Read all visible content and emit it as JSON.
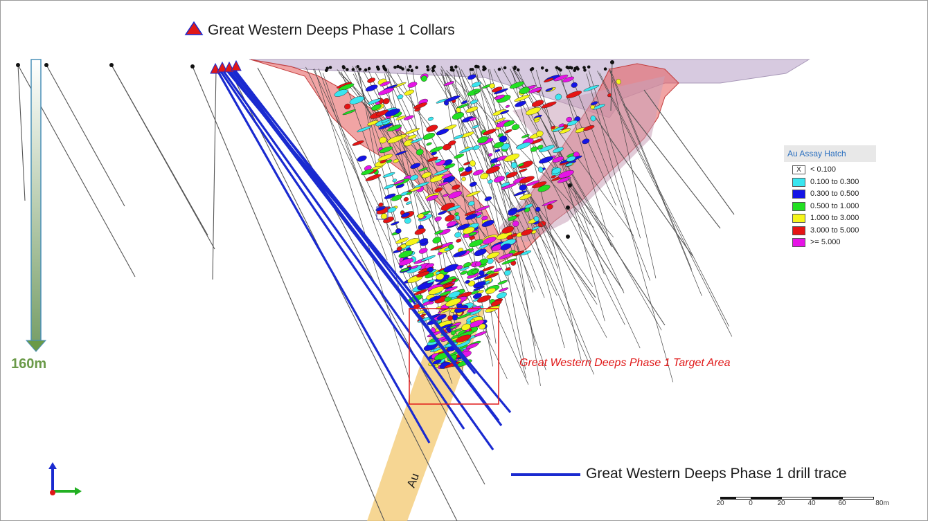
{
  "header": {
    "collars_label": "Great Western Deeps Phase 1 Collars",
    "collar_icon": "red-triangle-icon"
  },
  "scale_arrow": {
    "label": "160m",
    "color": "#6a9a48"
  },
  "target_area": {
    "label": "Great Western Deeps Phase 1 Target Area",
    "color": "#e01818"
  },
  "drill_trace_key": {
    "label": "Great Western Deeps Phase 1 drill trace",
    "color": "#1a2ad0"
  },
  "lode_label": "Au",
  "legend": {
    "title": "Au Assay Hatch",
    "items": [
      {
        "label": "< 0.100",
        "color": "#ffffff",
        "mark": "X"
      },
      {
        "label": "0.100 to 0.300",
        "color": "#39e6f0",
        "mark": ""
      },
      {
        "label": "0.300 to 0.500",
        "color": "#1414e6",
        "mark": ""
      },
      {
        "label": "0.500 to 1.000",
        "color": "#22e022",
        "mark": ""
      },
      {
        "label": "1.000 to 3.000",
        "color": "#f5f51a",
        "mark": ""
      },
      {
        "label": "3.000 to 5.000",
        "color": "#e61414",
        "mark": ""
      },
      {
        "label": ">= 5.000",
        "color": "#e614e6",
        "mark": ""
      }
    ]
  },
  "scale_bar": {
    "ticks": [
      "20",
      "0",
      "20",
      "40",
      "60",
      "80m"
    ]
  },
  "axis_triad": {
    "icon": "xyz-axis-triad-icon"
  }
}
